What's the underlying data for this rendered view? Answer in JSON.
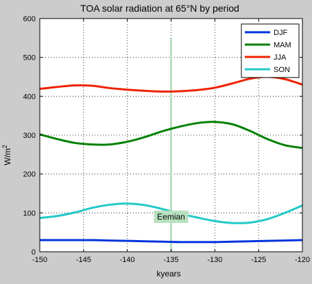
{
  "chart_data": {
    "type": "line",
    "title": "TOA solar radiation at 65°N by period",
    "xlabel": "kyears",
    "ylabel": "W/m",
    "ylabel_sup": "2",
    "xlim": [
      -150,
      -120
    ],
    "ylim": [
      0,
      600
    ],
    "xticks": [
      -150,
      -145,
      -140,
      -135,
      -130,
      -125,
      -120
    ],
    "yticks": [
      0,
      100,
      200,
      300,
      400,
      500,
      600
    ],
    "grid": true,
    "legend_position": "top-right",
    "x": [
      -150,
      -148,
      -146,
      -144,
      -142,
      -140,
      -138,
      -136,
      -134,
      -132,
      -130,
      -128,
      -126,
      -124,
      -122,
      -120
    ],
    "series": [
      {
        "name": "DJF",
        "color": "#0033dd",
        "values": [
          30,
          30,
          30,
          30,
          29,
          28,
          27,
          26,
          25,
          25,
          25,
          26,
          27,
          28,
          29,
          30
        ]
      },
      {
        "name": "MAM",
        "color": "#008000",
        "values": [
          302,
          290,
          280,
          276,
          276,
          283,
          295,
          310,
          322,
          331,
          334,
          328,
          311,
          290,
          274,
          267
        ]
      },
      {
        "name": "JJA",
        "color": "#ee2200",
        "values": [
          419,
          424,
          428,
          427,
          421,
          417,
          414,
          412,
          413,
          416,
          422,
          433,
          445,
          450,
          444,
          430
        ]
      },
      {
        "name": "SON",
        "color": "#22c8c8",
        "values": [
          87,
          92,
          101,
          113,
          121,
          124,
          120,
          110,
          98,
          88,
          79,
          74,
          75,
          84,
          100,
          119
        ]
      }
    ],
    "annotation": {
      "label": "Eemian",
      "x": -135,
      "y": 90,
      "line_color": "#b8e0c0",
      "box_color": "#b8e0c0"
    }
  }
}
